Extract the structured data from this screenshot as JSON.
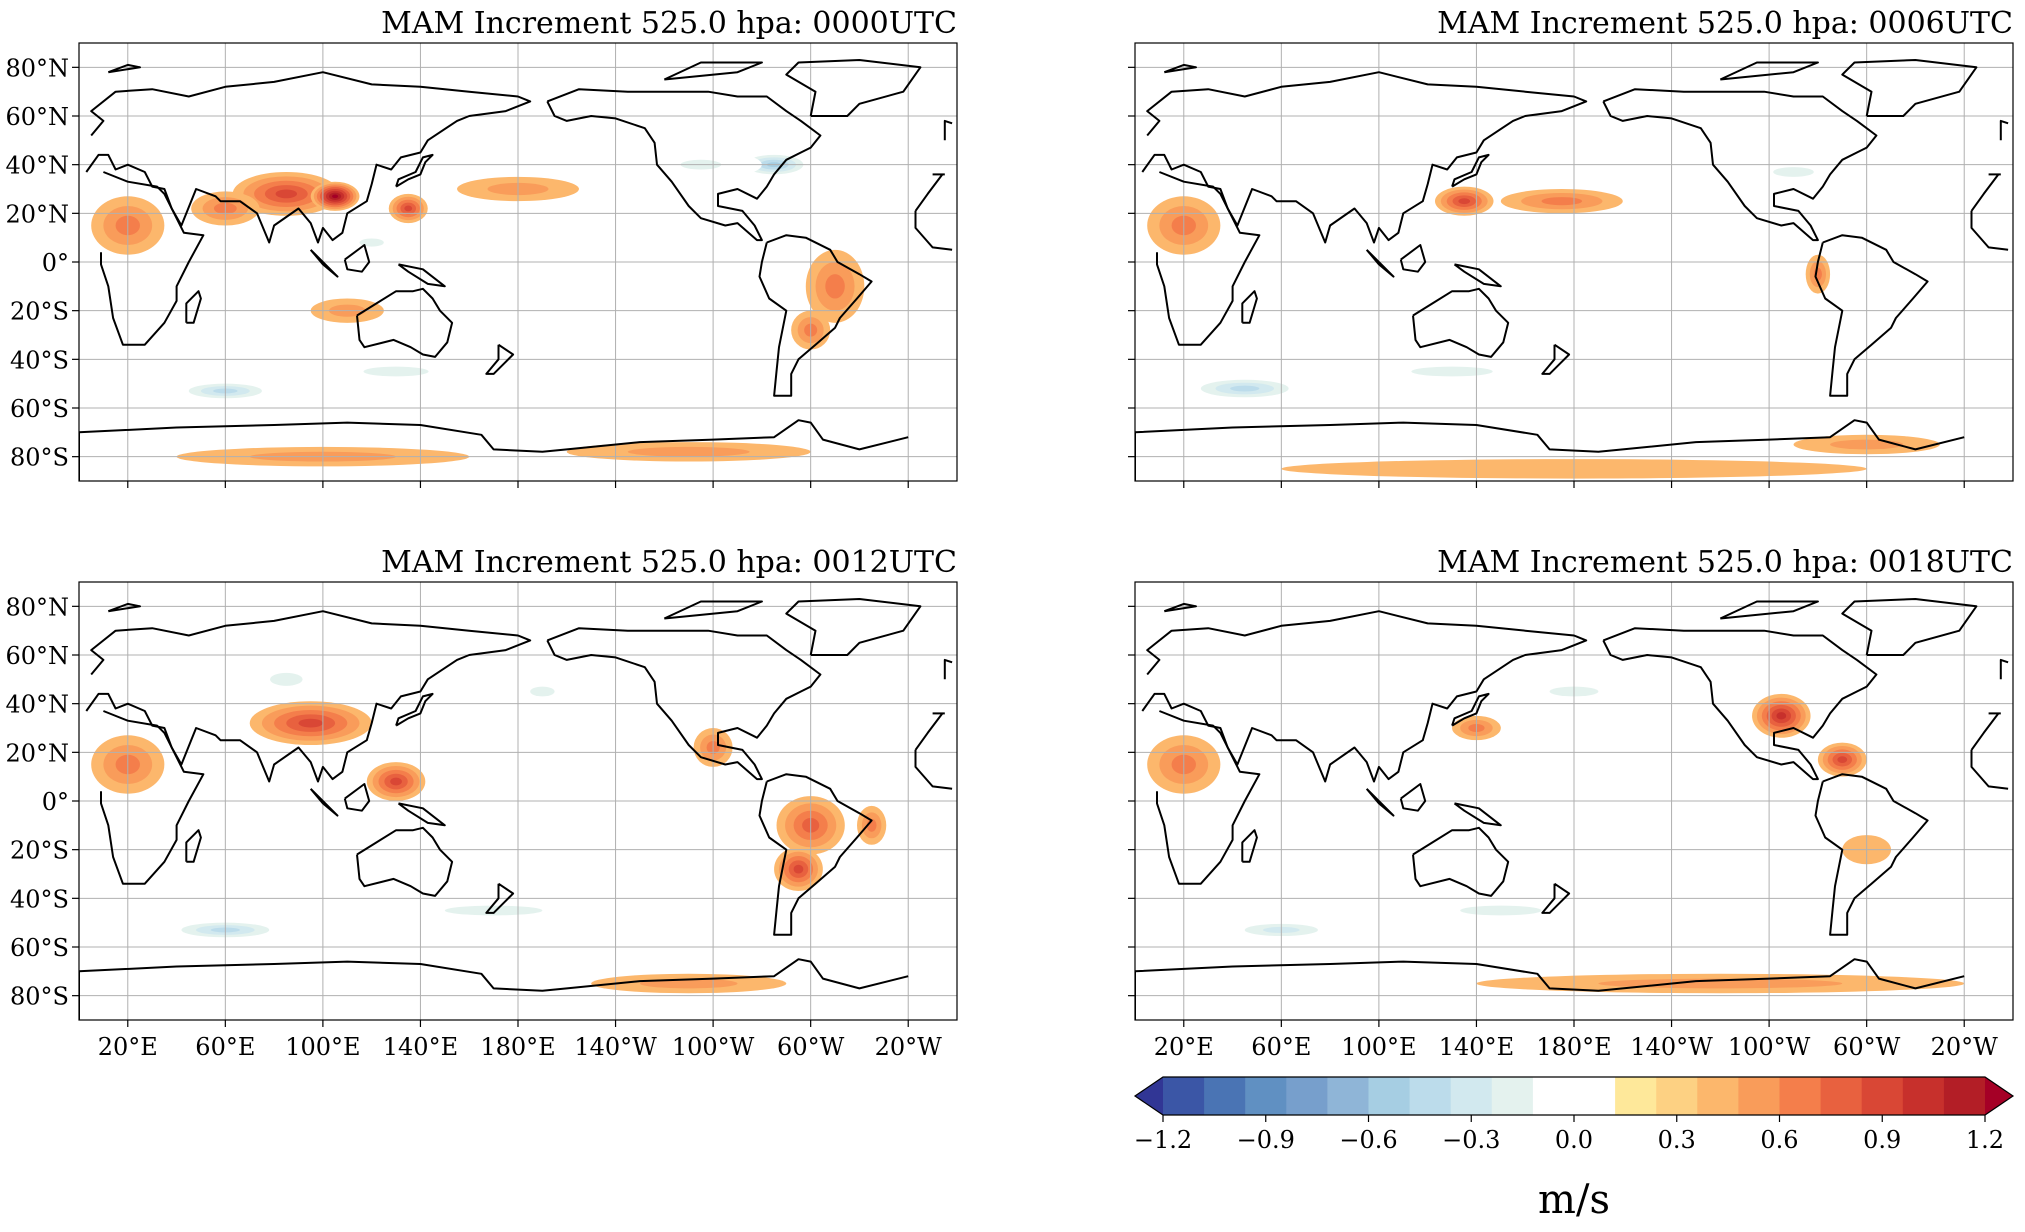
{
  "figure": {
    "panels": [
      {
        "id": "p0000",
        "title": "MAM Increment 525.0 hpa:  0000UTC",
        "show_lat_labels": true,
        "show_lon_labels": false
      },
      {
        "id": "p0006",
        "title": "MAM Increment 525.0 hpa:  0006UTC",
        "show_lat_labels": false,
        "show_lon_labels": false
      },
      {
        "id": "p0012",
        "title": "MAM Increment 525.0 hpa:  0012UTC",
        "show_lat_labels": true,
        "show_lon_labels": true
      },
      {
        "id": "p0018",
        "title": "MAM Increment 525.0 hpa:  0018UTC",
        "show_lat_labels": false,
        "show_lon_labels": true
      }
    ],
    "lat_ticks": [
      "80°N",
      "60°N",
      "40°N",
      "20°N",
      "0°",
      "20°S",
      "40°S",
      "60°S",
      "80°S"
    ],
    "lat_values": [
      80,
      60,
      40,
      20,
      0,
      -20,
      -40,
      -60,
      -80
    ],
    "lon_ticks": [
      "20°E",
      "60°E",
      "100°E",
      "140°E",
      "180°E",
      "140°W",
      "100°W",
      "60°W",
      "20°W"
    ],
    "lon_values": [
      20,
      60,
      100,
      140,
      180,
      220,
      260,
      300,
      340
    ],
    "map_extent": {
      "lon_min": 0,
      "lon_max": 360,
      "lat_min": -90,
      "lat_max": 90,
      "central_longitude": 180
    },
    "colorbar": {
      "unit_label": "m/s",
      "vmin": -1.2,
      "vmax": 1.2,
      "step": 0.1,
      "tick_labels": [
        "−1.2",
        "−0.9",
        "−0.6",
        "−0.3",
        "0.0",
        "0.3",
        "0.6",
        "0.9",
        "1.2"
      ],
      "tick_values": [
        -1.2,
        -0.9,
        -0.6,
        -0.3,
        0.0,
        0.3,
        0.6,
        0.9,
        1.2
      ],
      "extend": "both",
      "colors": [
        "#313695",
        "#3b56a6",
        "#4a74b4",
        "#6090c2",
        "#779fcc",
        "#8fb5d7",
        "#a6cee3",
        "#bcdceb",
        "#d2e9ef",
        "#e4f2ee",
        "#ffffff",
        "#ffffff",
        "#fee89a",
        "#fdd183",
        "#fcb76c",
        "#f99c5a",
        "#f47e4b",
        "#e8613f",
        "#d94735",
        "#c7302c",
        "#b31e26",
        "#a50026"
      ]
    },
    "colormap": "RdYlBu_r"
  }
}
